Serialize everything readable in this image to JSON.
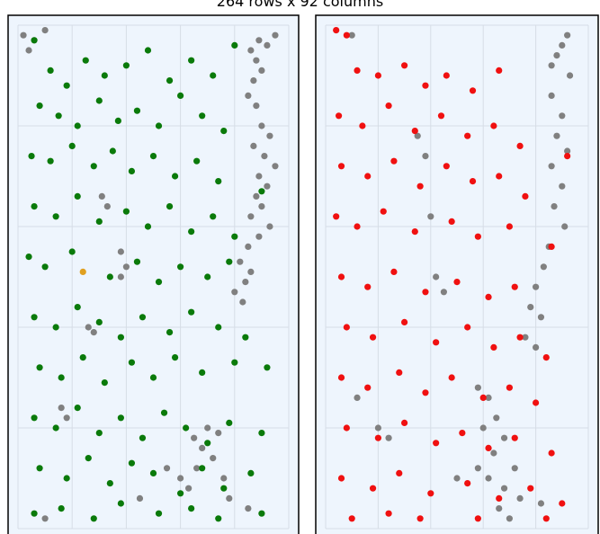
{
  "title": "264 rows x 92 columns",
  "colors": {
    "background": "#eef5fd",
    "grid": "#d6dde6",
    "frame": "#000000",
    "gray_points": "#808080",
    "left_highlight": "#0a7a0a",
    "right_highlight": "#f01010",
    "orange_point": "#e0a020"
  },
  "chart_data": [
    {
      "type": "scatter",
      "title": "",
      "grid": true,
      "series": [
        {
          "color": "#808080",
          "points": [
            [
              0.02,
              0.98
            ],
            [
              0.06,
              0.97
            ],
            [
              0.1,
              0.99
            ],
            [
              0.04,
              0.95
            ],
            [
              0.86,
              0.95
            ],
            [
              0.88,
              0.93
            ],
            [
              0.9,
              0.91
            ],
            [
              0.87,
              0.89
            ],
            [
              0.92,
              0.96
            ],
            [
              0.95,
              0.98
            ],
            [
              0.89,
              0.97
            ],
            [
              0.85,
              0.86
            ],
            [
              0.88,
              0.84
            ],
            [
              0.9,
              0.8
            ],
            [
              0.93,
              0.78
            ],
            [
              0.87,
              0.76
            ],
            [
              0.91,
              0.74
            ],
            [
              0.95,
              0.72
            ],
            [
              0.89,
              0.7
            ],
            [
              0.92,
              0.68
            ],
            [
              0.88,
              0.66
            ],
            [
              0.9,
              0.64
            ],
            [
              0.86,
              0.62
            ],
            [
              0.93,
              0.6
            ],
            [
              0.89,
              0.58
            ],
            [
              0.85,
              0.56
            ],
            [
              0.82,
              0.53
            ],
            [
              0.86,
              0.51
            ],
            [
              0.84,
              0.49
            ],
            [
              0.8,
              0.47
            ],
            [
              0.83,
              0.45
            ],
            [
              0.31,
              0.66
            ],
            [
              0.33,
              0.64
            ],
            [
              0.38,
              0.55
            ],
            [
              0.4,
              0.52
            ],
            [
              0.38,
              0.5
            ],
            [
              0.26,
              0.4
            ],
            [
              0.28,
              0.39
            ],
            [
              0.65,
              0.18
            ],
            [
              0.68,
              0.16
            ],
            [
              0.7,
              0.2
            ],
            [
              0.72,
              0.14
            ],
            [
              0.74,
              0.19
            ],
            [
              0.66,
              0.12
            ],
            [
              0.6,
              0.1
            ],
            [
              0.63,
              0.08
            ],
            [
              0.76,
              0.1
            ],
            [
              0.78,
              0.06
            ],
            [
              0.16,
              0.24
            ],
            [
              0.18,
              0.22
            ],
            [
              0.45,
              0.06
            ],
            [
              0.55,
              0.12
            ],
            [
              0.1,
              0.02
            ],
            [
              0.85,
              0.04
            ]
          ]
        },
        {
          "color": "#0a7a0a",
          "points": [
            [
              0.06,
              0.97
            ],
            [
              0.12,
              0.91
            ],
            [
              0.18,
              0.88
            ],
            [
              0.25,
              0.93
            ],
            [
              0.32,
              0.9
            ],
            [
              0.4,
              0.92
            ],
            [
              0.48,
              0.95
            ],
            [
              0.56,
              0.89
            ],
            [
              0.64,
              0.93
            ],
            [
              0.72,
              0.9
            ],
            [
              0.8,
              0.96
            ],
            [
              0.08,
              0.84
            ],
            [
              0.15,
              0.82
            ],
            [
              0.22,
              0.8
            ],
            [
              0.3,
              0.85
            ],
            [
              0.37,
              0.81
            ],
            [
              0.44,
              0.83
            ],
            [
              0.52,
              0.8
            ],
            [
              0.6,
              0.86
            ],
            [
              0.68,
              0.82
            ],
            [
              0.76,
              0.79
            ],
            [
              0.05,
              0.74
            ],
            [
              0.12,
              0.73
            ],
            [
              0.2,
              0.76
            ],
            [
              0.28,
              0.72
            ],
            [
              0.35,
              0.75
            ],
            [
              0.42,
              0.71
            ],
            [
              0.5,
              0.74
            ],
            [
              0.58,
              0.7
            ],
            [
              0.66,
              0.73
            ],
            [
              0.74,
              0.69
            ],
            [
              0.9,
              0.67
            ],
            [
              0.06,
              0.64
            ],
            [
              0.14,
              0.62
            ],
            [
              0.22,
              0.66
            ],
            [
              0.3,
              0.61
            ],
            [
              0.4,
              0.63
            ],
            [
              0.48,
              0.6
            ],
            [
              0.56,
              0.64
            ],
            [
              0.64,
              0.59
            ],
            [
              0.72,
              0.62
            ],
            [
              0.8,
              0.58
            ],
            [
              0.04,
              0.54
            ],
            [
              0.1,
              0.52
            ],
            [
              0.2,
              0.55
            ],
            [
              0.34,
              0.5
            ],
            [
              0.44,
              0.53
            ],
            [
              0.52,
              0.49
            ],
            [
              0.6,
              0.52
            ],
            [
              0.7,
              0.5
            ],
            [
              0.78,
              0.53
            ],
            [
              0.06,
              0.42
            ],
            [
              0.14,
              0.4
            ],
            [
              0.22,
              0.44
            ],
            [
              0.3,
              0.41
            ],
            [
              0.38,
              0.38
            ],
            [
              0.46,
              0.42
            ],
            [
              0.56,
              0.39
            ],
            [
              0.64,
              0.43
            ],
            [
              0.74,
              0.4
            ],
            [
              0.84,
              0.38
            ],
            [
              0.08,
              0.32
            ],
            [
              0.16,
              0.3
            ],
            [
              0.24,
              0.34
            ],
            [
              0.32,
              0.29
            ],
            [
              0.42,
              0.33
            ],
            [
              0.5,
              0.3
            ],
            [
              0.58,
              0.34
            ],
            [
              0.68,
              0.31
            ],
            [
              0.8,
              0.33
            ],
            [
              0.92,
              0.32
            ],
            [
              0.06,
              0.22
            ],
            [
              0.14,
              0.2
            ],
            [
              0.22,
              0.24
            ],
            [
              0.3,
              0.19
            ],
            [
              0.38,
              0.22
            ],
            [
              0.46,
              0.18
            ],
            [
              0.54,
              0.23
            ],
            [
              0.62,
              0.2
            ],
            [
              0.7,
              0.17
            ],
            [
              0.78,
              0.21
            ],
            [
              0.9,
              0.19
            ],
            [
              0.08,
              0.12
            ],
            [
              0.18,
              0.1
            ],
            [
              0.26,
              0.14
            ],
            [
              0.34,
              0.09
            ],
            [
              0.42,
              0.13
            ],
            [
              0.5,
              0.11
            ],
            [
              0.6,
              0.07
            ],
            [
              0.68,
              0.12
            ],
            [
              0.76,
              0.08
            ],
            [
              0.86,
              0.11
            ],
            [
              0.06,
              0.03
            ],
            [
              0.16,
              0.04
            ],
            [
              0.28,
              0.02
            ],
            [
              0.38,
              0.05
            ],
            [
              0.52,
              0.03
            ],
            [
              0.64,
              0.04
            ],
            [
              0.74,
              0.02
            ],
            [
              0.9,
              0.03
            ]
          ]
        },
        {
          "color": "#e0a020",
          "points": [
            [
              0.24,
              0.51
            ]
          ]
        }
      ]
    },
    {
      "type": "scatter",
      "title": "",
      "grid": true,
      "series": [
        {
          "color": "#808080",
          "points": [
            [
              0.92,
              0.98
            ],
            [
              0.9,
              0.96
            ],
            [
              0.88,
              0.94
            ],
            [
              0.86,
              0.92
            ],
            [
              0.93,
              0.9
            ],
            [
              0.86,
              0.86
            ],
            [
              0.9,
              0.82
            ],
            [
              0.88,
              0.78
            ],
            [
              0.92,
              0.75
            ],
            [
              0.86,
              0.72
            ],
            [
              0.9,
              0.68
            ],
            [
              0.87,
              0.64
            ],
            [
              0.91,
              0.6
            ],
            [
              0.85,
              0.56
            ],
            [
              0.83,
              0.52
            ],
            [
              0.8,
              0.48
            ],
            [
              0.78,
              0.44
            ],
            [
              0.82,
              0.42
            ],
            [
              0.76,
              0.38
            ],
            [
              0.8,
              0.36
            ],
            [
              0.35,
              0.78
            ],
            [
              0.38,
              0.74
            ],
            [
              0.4,
              0.62
            ],
            [
              0.42,
              0.5
            ],
            [
              0.45,
              0.47
            ],
            [
              0.58,
              0.28
            ],
            [
              0.62,
              0.26
            ],
            [
              0.65,
              0.22
            ],
            [
              0.6,
              0.2
            ],
            [
              0.68,
              0.18
            ],
            [
              0.64,
              0.15
            ],
            [
              0.58,
              0.12
            ],
            [
              0.62,
              0.1
            ],
            [
              0.68,
              0.08
            ],
            [
              0.72,
              0.12
            ],
            [
              0.74,
              0.06
            ],
            [
              0.66,
              0.04
            ],
            [
              0.7,
              0.02
            ],
            [
              0.2,
              0.2
            ],
            [
              0.24,
              0.18
            ],
            [
              0.12,
              0.26
            ],
            [
              0.5,
              0.1
            ],
            [
              0.82,
              0.05
            ],
            [
              0.1,
              0.98
            ]
          ]
        },
        {
          "color": "#f01010",
          "points": [
            [
              0.04,
              0.99
            ],
            [
              0.08,
              0.98
            ],
            [
              0.12,
              0.91
            ],
            [
              0.2,
              0.9
            ],
            [
              0.3,
              0.92
            ],
            [
              0.38,
              0.88
            ],
            [
              0.46,
              0.9
            ],
            [
              0.56,
              0.87
            ],
            [
              0.66,
              0.91
            ],
            [
              0.05,
              0.82
            ],
            [
              0.14,
              0.8
            ],
            [
              0.24,
              0.84
            ],
            [
              0.34,
              0.79
            ],
            [
              0.44,
              0.82
            ],
            [
              0.54,
              0.78
            ],
            [
              0.64,
              0.8
            ],
            [
              0.74,
              0.76
            ],
            [
              0.92,
              0.74
            ],
            [
              0.06,
              0.72
            ],
            [
              0.16,
              0.7
            ],
            [
              0.26,
              0.73
            ],
            [
              0.36,
              0.68
            ],
            [
              0.46,
              0.72
            ],
            [
              0.56,
              0.69
            ],
            [
              0.66,
              0.7
            ],
            [
              0.76,
              0.66
            ],
            [
              0.04,
              0.62
            ],
            [
              0.12,
              0.6
            ],
            [
              0.22,
              0.63
            ],
            [
              0.34,
              0.59
            ],
            [
              0.48,
              0.61
            ],
            [
              0.58,
              0.58
            ],
            [
              0.7,
              0.6
            ],
            [
              0.86,
              0.56
            ],
            [
              0.06,
              0.5
            ],
            [
              0.16,
              0.48
            ],
            [
              0.26,
              0.51
            ],
            [
              0.38,
              0.47
            ],
            [
              0.5,
              0.49
            ],
            [
              0.62,
              0.46
            ],
            [
              0.72,
              0.48
            ],
            [
              0.08,
              0.4
            ],
            [
              0.18,
              0.38
            ],
            [
              0.3,
              0.41
            ],
            [
              0.42,
              0.37
            ],
            [
              0.54,
              0.4
            ],
            [
              0.64,
              0.36
            ],
            [
              0.74,
              0.38
            ],
            [
              0.84,
              0.34
            ],
            [
              0.06,
              0.3
            ],
            [
              0.16,
              0.28
            ],
            [
              0.28,
              0.31
            ],
            [
              0.38,
              0.27
            ],
            [
              0.48,
              0.3
            ],
            [
              0.6,
              0.26
            ],
            [
              0.7,
              0.28
            ],
            [
              0.8,
              0.25
            ],
            [
              0.08,
              0.2
            ],
            [
              0.2,
              0.18
            ],
            [
              0.3,
              0.21
            ],
            [
              0.42,
              0.17
            ],
            [
              0.52,
              0.19
            ],
            [
              0.62,
              0.16
            ],
            [
              0.72,
              0.18
            ],
            [
              0.86,
              0.15
            ],
            [
              0.06,
              0.1
            ],
            [
              0.18,
              0.08
            ],
            [
              0.28,
              0.11
            ],
            [
              0.4,
              0.07
            ],
            [
              0.54,
              0.09
            ],
            [
              0.66,
              0.06
            ],
            [
              0.78,
              0.08
            ],
            [
              0.9,
              0.05
            ],
            [
              0.1,
              0.02
            ],
            [
              0.24,
              0.03
            ],
            [
              0.36,
              0.02
            ],
            [
              0.58,
              0.02
            ],
            [
              0.84,
              0.02
            ]
          ]
        }
      ]
    }
  ]
}
